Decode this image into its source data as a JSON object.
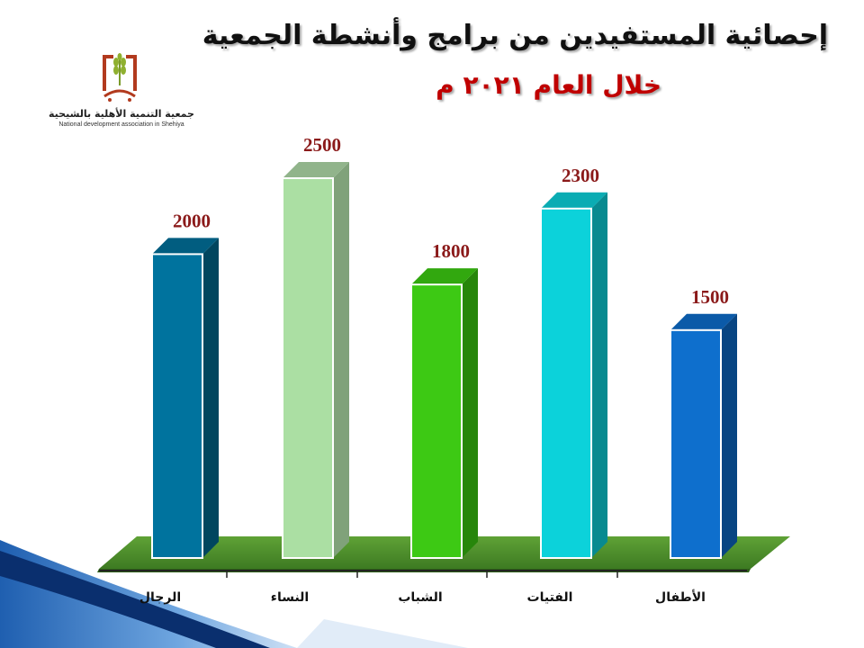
{
  "slide": {
    "title": "إحصائية المستفيدين من برامج وأنشطة الجمعية",
    "subtitle": "خلال العام ٢٠٢١ م"
  },
  "logo": {
    "arabic_name": "جمعية التنمية الأهلية بالشيحية",
    "english_name": "National development association in Shehiya"
  },
  "colors": {
    "title": "#101010",
    "subtitle": "#c00000",
    "value_labels": "#8b1a1a",
    "floor": "#4f8f2c"
  },
  "chart_data": {
    "type": "bar",
    "title": "",
    "xlabel": "",
    "ylabel": "",
    "ylim": [
      0,
      2600
    ],
    "grid": false,
    "legend": "none",
    "categories": [
      "الرجال",
      "النساء",
      "الشباب",
      "الفتيات",
      "الأطفال"
    ],
    "values": [
      2000,
      2500,
      1800,
      2300,
      1500
    ],
    "value_labels": [
      "2000",
      "2500",
      "1800",
      "2300",
      "1500"
    ],
    "bar_colors": [
      {
        "front": "#00739e",
        "top": "#015d80",
        "side": "#00465f"
      },
      {
        "front": "#abdfa3",
        "top": "#91b48b",
        "side": "#80a27a"
      },
      {
        "front": "#3dc914",
        "top": "#32a80f",
        "side": "#27860b"
      },
      {
        "front": "#0cd2da",
        "top": "#0aacb3",
        "side": "#088a90"
      },
      {
        "front": "#0e6fcd",
        "top": "#0b5aa8",
        "side": "#084582"
      }
    ]
  }
}
